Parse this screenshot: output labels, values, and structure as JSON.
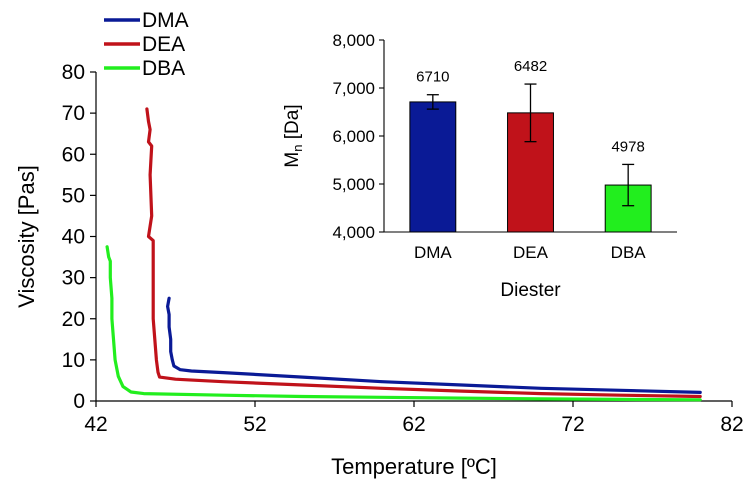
{
  "chart_data": [
    {
      "type": "line",
      "xlabel": "Temperature [ºC]",
      "ylabel": "Viscosity [Pas]",
      "xlim": [
        42,
        82
      ],
      "ylim": [
        0,
        80
      ],
      "xticks": [
        "42",
        "52",
        "62",
        "72",
        "82"
      ],
      "yticks": [
        "0",
        "10",
        "20",
        "30",
        "40",
        "50",
        "60",
        "70",
        "80"
      ],
      "legend_position": "top-left",
      "grid": false,
      "series": [
        {
          "name": "DMA",
          "color": "#0a1a96",
          "points": [
            [
              46.6,
              25
            ],
            [
              46.5,
              23
            ],
            [
              46.6,
              21
            ],
            [
              46.6,
              18
            ],
            [
              46.7,
              15
            ],
            [
              46.7,
              12
            ],
            [
              46.8,
              10
            ],
            [
              46.9,
              8.5
            ],
            [
              47.3,
              7.6
            ],
            [
              48,
              7.3
            ],
            [
              50,
              6.9
            ],
            [
              55,
              5.8
            ],
            [
              60,
              4.7
            ],
            [
              65,
              3.9
            ],
            [
              70,
              3.1
            ],
            [
              75,
              2.6
            ],
            [
              80,
              2.1
            ]
          ]
        },
        {
          "name": "DEA",
          "color": "#c0121a",
          "points": [
            [
              45.2,
              71
            ],
            [
              45.3,
              68
            ],
            [
              45.4,
              66
            ],
            [
              45.3,
              63
            ],
            [
              45.5,
              62
            ],
            [
              45.4,
              55
            ],
            [
              45.5,
              45
            ],
            [
              45.3,
              40
            ],
            [
              45.6,
              39
            ],
            [
              45.6,
              30
            ],
            [
              45.6,
              20
            ],
            [
              45.7,
              15
            ],
            [
              45.8,
              10
            ],
            [
              45.9,
              7
            ],
            [
              46,
              5.8
            ],
            [
              47,
              5.3
            ],
            [
              50,
              4.7
            ],
            [
              55,
              3.9
            ],
            [
              60,
              3.1
            ],
            [
              65,
              2.4
            ],
            [
              70,
              1.8
            ],
            [
              75,
              1.4
            ],
            [
              80,
              1.1
            ]
          ]
        },
        {
          "name": "DBA",
          "color": "#22ee1e",
          "points": [
            [
              42.7,
              37.5
            ],
            [
              42.8,
              35
            ],
            [
              42.9,
              34
            ],
            [
              42.9,
              30
            ],
            [
              43,
              25
            ],
            [
              43,
              20
            ],
            [
              43.1,
              15
            ],
            [
              43.2,
              10
            ],
            [
              43.4,
              6
            ],
            [
              43.7,
              3.5
            ],
            [
              44.2,
              2.2
            ],
            [
              45,
              1.8
            ],
            [
              50,
              1.4
            ],
            [
              55,
              1.1
            ],
            [
              60,
              0.9
            ],
            [
              65,
              0.7
            ],
            [
              70,
              0.5
            ],
            [
              75,
              0.4
            ],
            [
              80,
              0.3
            ]
          ]
        }
      ]
    },
    {
      "type": "bar",
      "xlabel": "Diester",
      "ylabel_main": "M",
      "ylabel_sub": "n",
      "ylabel_tail": " [Da]",
      "ylim": [
        4000,
        8000
      ],
      "yticks": [
        "4,000",
        "5,000",
        "6,000",
        "7,000",
        "8,000"
      ],
      "categories": [
        "DMA",
        "DEA",
        "DBA"
      ],
      "values": [
        6710,
        6482,
        4978
      ],
      "value_labels": [
        "6710",
        "6482",
        "4978"
      ],
      "errors": [
        150,
        600,
        430
      ],
      "colors": [
        "#0a1a96",
        "#c0121a",
        "#22ee1e"
      ]
    }
  ]
}
